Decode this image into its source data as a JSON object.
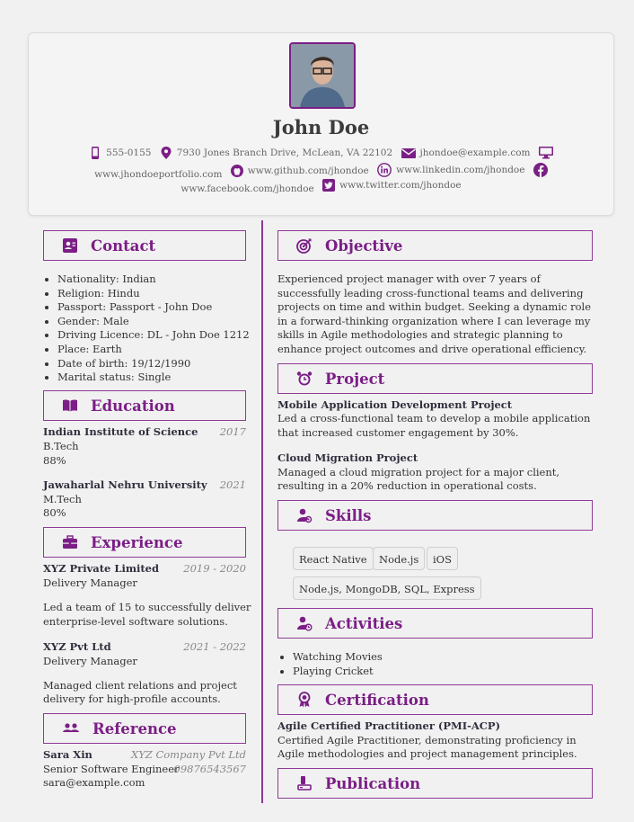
{
  "profile": {
    "name": "John Doe",
    "phone": "555-0155",
    "address": "7930 Jones Branch Drive, McLean, VA 22102",
    "email": "jhondoe@example.com",
    "portfolio": "www.jhondoeportfolio.com",
    "github": "www.github.com/jhondoe",
    "linkedin": "www.linkedin.com/jhondoe",
    "facebook": "www.facebook.com/jhondoe",
    "twitter": "www.twitter.com/jhondoe"
  },
  "contact": {
    "title": "Contact",
    "items": [
      "Nationality: Indian",
      "Religion: Hindu",
      "Passport: Passport - John Doe",
      "Gender: Male",
      "Driving Licence: DL - John Doe 1212",
      "Place: Earth",
      "Date of birth: 19/12/1990",
      "Marital status: Single"
    ]
  },
  "education": {
    "title": "Education",
    "items": [
      {
        "school": "Indian Institute of Science",
        "year": "2017",
        "degree": "B.Tech",
        "score": "88%"
      },
      {
        "school": "Jawaharlal Nehru University",
        "year": "2021",
        "degree": "M.Tech",
        "score": "80%"
      }
    ]
  },
  "experience": {
    "title": "Experience",
    "items": [
      {
        "company": "XYZ Private Limited",
        "dates": "2019 - 2020",
        "role": "Delivery Manager",
        "desc": [
          "Led a team of 15 to successfully deliver",
          "enterprise-level software solutions."
        ]
      },
      {
        "company": "XYZ Pvt Ltd",
        "dates": "2021 - 2022",
        "role": "Delivery Manager",
        "desc": [
          "Managed client relations and project",
          "delivery for high-profile accounts."
        ]
      }
    ]
  },
  "reference": {
    "title": "Reference",
    "name": "Sara Xin",
    "company": "XYZ Company Pvt Ltd",
    "role": "Senior Software Engineer",
    "phone": "09876543567",
    "email": "sara@example.com"
  },
  "objective": {
    "title": "Objective",
    "lines": [
      "Experienced project manager with over 7 years of",
      "successfully leading cross-functional teams and delivering",
      "projects on time and within budget. Seeking a dynamic role",
      "in a forward-thinking organization where I can leverage my",
      "skills in Agile methodologies and strategic planning to",
      "enhance project outcomes and drive operational efficiency."
    ]
  },
  "project": {
    "title": "Project",
    "items": [
      {
        "name": "Mobile Application Development Project",
        "desc": [
          "Led a cross-functional team to develop a mobile application",
          "that increased customer engagement by 30%."
        ]
      },
      {
        "name": "Cloud Migration Project",
        "desc": [
          "Managed a cloud migration project for a major client,",
          "resulting in a 20% reduction in operational costs."
        ]
      }
    ]
  },
  "skills": {
    "title": "Skills",
    "items": [
      "React Native",
      "Node.js",
      "iOS",
      "Node.js, MongoDB, SQL, Express"
    ]
  },
  "activities": {
    "title": "Activities",
    "items": [
      "Watching Movies",
      "Playing Cricket"
    ]
  },
  "certification": {
    "title": "Certification",
    "name": "Agile Certified Practitioner (PMI-ACP)",
    "desc": [
      "Certified Agile Practitioner, demonstrating proficiency in",
      "Agile methodologies and project management principles."
    ]
  },
  "publication": {
    "title": "Publication"
  },
  "colors": {
    "accent": "#7b1e86",
    "background": "#f1f1f1",
    "text": "#333333"
  }
}
